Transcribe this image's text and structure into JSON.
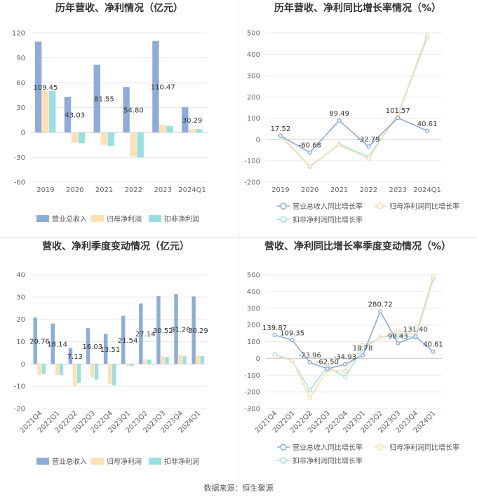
{
  "source_text": "数据来源：恒生聚源",
  "colors": {
    "revenue": "#8eacd9",
    "net_profit": "#fde0b4",
    "deducted_profit": "#9adfe0",
    "revenue_line": "#8eacd9",
    "net_line": "#f8ddb0",
    "deducted_line": "#a6e3e3"
  },
  "chart_data": [
    {
      "id": "annual-amounts",
      "type": "bar",
      "title": "历年营收、净利情况（亿元）",
      "categories": [
        "2019",
        "2020",
        "2021",
        "2022",
        "2023",
        "2024Q1"
      ],
      "ylim": [
        -60,
        120
      ],
      "yticks": [
        -60,
        -30,
        0,
        30,
        60,
        90,
        120
      ],
      "legend_position": "bottom",
      "series": [
        {
          "name": "营业总收入",
          "color": "#8eacd9",
          "values": [
            109.45,
            43.03,
            81.55,
            54.8,
            110.47,
            30.29
          ]
        },
        {
          "name": "归母净利润",
          "color": "#fde0b4",
          "values": [
            50,
            -12,
            -15,
            -29,
            9,
            4
          ]
        },
        {
          "name": "扣非净利润",
          "color": "#9adfe0",
          "values": [
            50,
            -13,
            -16,
            -30,
            8,
            4
          ]
        }
      ],
      "data_labels": [
        "109.45",
        "43.03",
        "81.55",
        "54.80",
        "110.47",
        "30.29"
      ]
    },
    {
      "id": "annual-growth",
      "type": "line",
      "title": "历年营收、净利同比增长率情况（%）",
      "categories": [
        "2019",
        "2020",
        "2021",
        "2022",
        "2023",
        "2024Q1"
      ],
      "ylim": [
        -200,
        500
      ],
      "yticks": [
        -200,
        -100,
        0,
        100,
        200,
        300,
        400,
        500
      ],
      "legend_position": "bottom",
      "series": [
        {
          "name": "营业总收入同比增长率",
          "color": "#8eacd9",
          "values": [
            17.52,
            -60.68,
            89.49,
            -32.79,
            101.57,
            40.61
          ]
        },
        {
          "name": "归母净利润同比增长率",
          "color": "#f8ddb0",
          "values": [
            20,
            -125,
            -25,
            -90,
            120,
            490
          ]
        },
        {
          "name": "扣非净利润同比增长率",
          "color": "#a6e3e3",
          "values": [
            18,
            -128,
            -22,
            -80,
            115,
            480
          ]
        }
      ],
      "data_labels": [
        "17.52",
        "-60.68",
        "89.49",
        "-32.79",
        "101.57",
        "40.61"
      ]
    },
    {
      "id": "quarterly-amounts",
      "type": "bar",
      "title": "营收、净利季度变动情况（亿元）",
      "categories": [
        "2021Q4",
        "2022Q1",
        "2022Q2",
        "2022Q3",
        "2022Q4",
        "2023Q1",
        "2023Q2",
        "2023Q3",
        "2023Q4",
        "2024Q1"
      ],
      "ylim": [
        -20,
        40
      ],
      "yticks": [
        -20,
        -10,
        0,
        10,
        20,
        30,
        40
      ],
      "legend_position": "bottom",
      "series": [
        {
          "name": "营业总收入",
          "color": "#8eacd9",
          "values": [
            20.76,
            18.14,
            7.13,
            16.03,
            13.51,
            21.54,
            27.14,
            30.52,
            31.26,
            30.29
          ]
        },
        {
          "name": "归母净利润",
          "color": "#fde0b4",
          "values": [
            -5,
            -5,
            -10,
            -6,
            -9,
            -1,
            2,
            3.5,
            4,
            3.8
          ]
        },
        {
          "name": "扣非净利润",
          "color": "#9adfe0",
          "values": [
            -4.5,
            -5,
            -8.5,
            -7,
            -9.5,
            -1,
            2,
            3.2,
            3.5,
            3.6
          ]
        }
      ],
      "data_labels": [
        "20.76",
        "18.14",
        "7.13",
        "16.03",
        "13.51",
        "21.54",
        "27.14",
        "30.52",
        "31.26",
        "30.29"
      ]
    },
    {
      "id": "quarterly-growth",
      "type": "line",
      "title": "营收、净利同比增长率季度变动情况（%）",
      "categories": [
        "2021Q4",
        "2022Q1",
        "2022Q2",
        "2022Q3",
        "2022Q4",
        "2023Q1",
        "2023Q2",
        "2023Q3",
        "2023Q4",
        "2024Q1"
      ],
      "ylim": [
        -300,
        500
      ],
      "yticks": [
        -300,
        -200,
        -100,
        0,
        100,
        200,
        300,
        400,
        500
      ],
      "legend_position": "bottom",
      "series": [
        {
          "name": "营业总收入同比增长率",
          "color": "#8eacd9",
          "values": [
            139.87,
            109.35,
            -23.96,
            -62.5,
            -34.93,
            18.78,
            280.72,
            90.43,
            131.4,
            40.61
          ]
        },
        {
          "name": "归母净利润同比增长率",
          "color": "#f8ddb0",
          "values": [
            10,
            -10,
            -235,
            -70,
            -75,
            80,
            120,
            165,
            140,
            490
          ]
        },
        {
          "name": "扣非净利润同比增长率",
          "color": "#a6e3e3",
          "values": [
            25,
            -15,
            -190,
            -50,
            -110,
            60,
            125,
            140,
            125,
            475
          ]
        }
      ],
      "data_labels": [
        "139.87",
        "109.35",
        "-23.96",
        "-62.50",
        "-34.93",
        "18.78",
        "280.72",
        "90.43",
        "131.40",
        "40.61"
      ]
    }
  ]
}
